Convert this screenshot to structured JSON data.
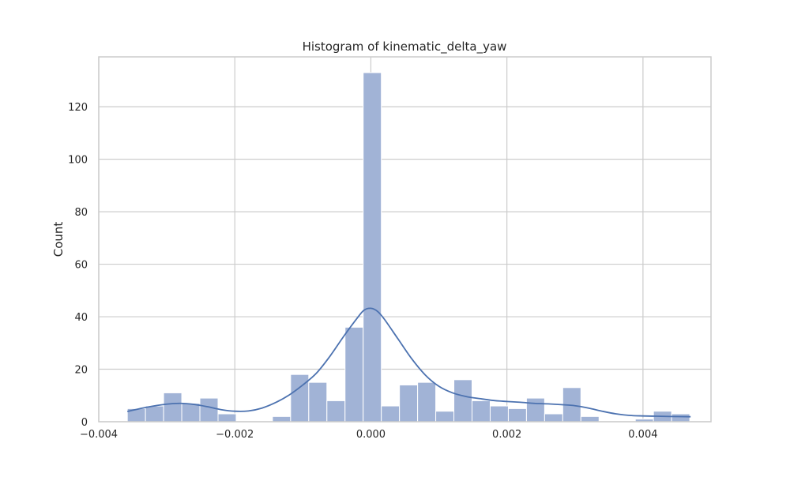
{
  "chart_data": {
    "type": "bar",
    "title": "Histogram of kinematic_delta_yaw",
    "xlabel": "",
    "ylabel": "Count",
    "xlim": [
      -0.004,
      0.005
    ],
    "ylim": [
      0,
      139
    ],
    "x_ticks": [
      -0.004,
      -0.002,
      0.0,
      0.002,
      0.004
    ],
    "x_tick_labels": [
      "−0.004",
      "−0.002",
      "0.000",
      "0.002",
      "0.004"
    ],
    "y_ticks": [
      0,
      20,
      40,
      60,
      80,
      100,
      120
    ],
    "y_tick_labels": [
      "0",
      "20",
      "40",
      "60",
      "80",
      "100",
      "120"
    ],
    "grid": true,
    "bins": {
      "start": -0.00358,
      "width": 0.0002667,
      "counts": [
        5,
        6,
        11,
        7,
        9,
        3,
        0,
        0,
        2,
        18,
        15,
        8,
        36,
        133,
        6,
        14,
        15,
        4,
        16,
        8,
        6,
        5,
        9,
        3,
        13,
        2,
        0,
        0,
        1,
        4,
        3
      ]
    },
    "kde": {
      "x": [
        -0.00358,
        -0.0033,
        -0.003,
        -0.0028,
        -0.0026,
        -0.0024,
        -0.0022,
        -0.002,
        -0.0018,
        -0.0016,
        -0.0014,
        -0.0012,
        -0.001,
        -0.0008,
        -0.0006,
        -0.0004,
        -0.0002,
        -0.0001,
        0.0,
        0.0001,
        0.0002,
        0.0004,
        0.0006,
        0.0008,
        0.001,
        0.0012,
        0.0014,
        0.0016,
        0.0018,
        0.002,
        0.0022,
        0.0024,
        0.0026,
        0.0028,
        0.003,
        0.0032,
        0.0034,
        0.0036,
        0.0038,
        0.004,
        0.0042,
        0.0044,
        0.0047
      ],
      "y": [
        3.9,
        5.5,
        6.7,
        7.0,
        6.6,
        5.7,
        4.6,
        4.0,
        4.1,
        5.2,
        7.3,
        10.2,
        14.0,
        18.5,
        25.0,
        32.5,
        39.5,
        42.5,
        43.2,
        42.0,
        39.0,
        31.5,
        24.0,
        17.8,
        13.5,
        11.0,
        9.6,
        8.8,
        8.1,
        7.7,
        7.4,
        7.0,
        6.8,
        6.5,
        6.1,
        5.2,
        4.0,
        3.0,
        2.4,
        2.2,
        2.1,
        2.0,
        1.9
      ]
    },
    "colors": {
      "bar_fill": "#a1b3d6",
      "bar_stroke": "#ffffff",
      "kde_line": "#4c72b0",
      "grid": "#cccccc",
      "axes_edge": "#cccccc"
    }
  }
}
